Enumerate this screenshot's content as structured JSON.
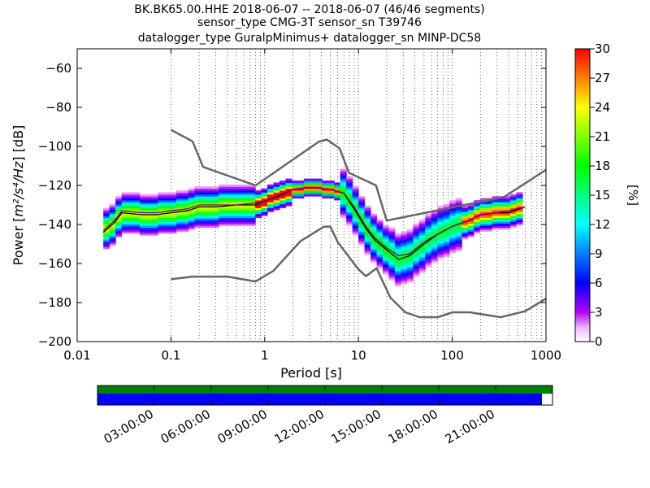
{
  "chart_data": {
    "type": "heatmap",
    "title_lines": [
      "BK.BK65.00.HHE   2018-06-07 -- 2018-06-07  (46/46 segments)",
      "sensor_type CMG-3T sensor_sn T39746",
      "datalogger_type GuralpMinimus+ datalogger_sn MINP-DC58"
    ],
    "xlabel": "Period [s]",
    "ylabel_prefix": "Power [",
    "ylabel_math": "m²/s⁴/Hz",
    "ylabel_suffix": "] [dB]",
    "x_scale": "log",
    "xlim": [
      0.01,
      1000
    ],
    "ylim": [
      -200,
      -50
    ],
    "x_ticks": [
      {
        "value": 0.01,
        "label": "0.01"
      },
      {
        "value": 0.1,
        "label": "0.1"
      },
      {
        "value": 1,
        "label": "1"
      },
      {
        "value": 10,
        "label": "10"
      },
      {
        "value": 100,
        "label": "100"
      },
      {
        "value": 1000,
        "label": "1000"
      }
    ],
    "y_ticks": [
      {
        "value": -200,
        "label": "−200"
      },
      {
        "value": -180,
        "label": "−180"
      },
      {
        "value": -160,
        "label": "−160"
      },
      {
        "value": -140,
        "label": "−140"
      },
      {
        "value": -120,
        "label": "−120"
      },
      {
        "value": -100,
        "label": "−100"
      },
      {
        "value": -80,
        "label": "−80"
      },
      {
        "value": -60,
        "label": "−60"
      }
    ],
    "grid": "dotted vertical at log minor ticks",
    "colorbar": {
      "label": "[%]",
      "range": [
        0,
        30
      ],
      "ticks": [
        "0",
        "3",
        "6",
        "9",
        "12",
        "15",
        "18",
        "21",
        "24",
        "27",
        "30"
      ],
      "colormap": "pqlx (white-purple-blue-cyan-green-yellow-red)"
    },
    "series": [
      {
        "role": "high noise model",
        "color": "#666666",
        "points": [
          [
            0.1,
            -91.5
          ],
          [
            0.17,
            -97.4
          ],
          [
            0.22,
            -110.5
          ],
          [
            0.8,
            -120
          ],
          [
            3.8,
            -97.5
          ],
          [
            4.6,
            -96.5
          ],
          [
            6.3,
            -101
          ],
          [
            7.9,
            -113.5
          ],
          [
            15.4,
            -120
          ],
          [
            20,
            -138
          ],
          [
            354,
            -126
          ],
          [
            1000,
            -112
          ]
        ]
      },
      {
        "role": "low noise model",
        "color": "#666666",
        "points": [
          [
            0.1,
            -168
          ],
          [
            0.17,
            -166.7
          ],
          [
            0.4,
            -166.7
          ],
          [
            0.8,
            -169.2
          ],
          [
            1.24,
            -163.7
          ],
          [
            2.4,
            -148.6
          ],
          [
            4.3,
            -141.1
          ],
          [
            5,
            -141.1
          ],
          [
            6,
            -149
          ],
          [
            10,
            -163
          ],
          [
            12,
            -166.5
          ],
          [
            15.6,
            -162.4
          ],
          [
            21.9,
            -177.5
          ],
          [
            31.6,
            -185
          ],
          [
            45,
            -187.5
          ],
          [
            70,
            -187.5
          ],
          [
            101,
            -185
          ],
          [
            154,
            -185
          ],
          [
            328,
            -187.5
          ],
          [
            600,
            -184.4
          ],
          [
            1000,
            -178
          ]
        ]
      },
      {
        "role": "mode",
        "color": "#000000",
        "points": [
          [
            0.019,
            -144
          ],
          [
            0.025,
            -139
          ],
          [
            0.03,
            -134
          ],
          [
            0.05,
            -135
          ],
          [
            0.07,
            -135
          ],
          [
            0.1,
            -134
          ],
          [
            0.15,
            -133
          ],
          [
            0.2,
            -131
          ],
          [
            0.3,
            -131
          ],
          [
            0.5,
            -130
          ],
          [
            0.8,
            -130
          ],
          [
            1,
            -128
          ],
          [
            1.5,
            -125
          ],
          [
            2,
            -122
          ],
          [
            3,
            -121
          ],
          [
            5,
            -122
          ],
          [
            7,
            -124
          ],
          [
            9,
            -132
          ],
          [
            12,
            -142
          ],
          [
            15,
            -148
          ],
          [
            20,
            -153
          ],
          [
            27,
            -158
          ],
          [
            35,
            -156
          ],
          [
            50,
            -150
          ],
          [
            70,
            -145
          ],
          [
            100,
            -141
          ],
          [
            150,
            -138
          ],
          [
            200,
            -135
          ],
          [
            300,
            -134
          ],
          [
            400,
            -134
          ],
          [
            600,
            -131
          ]
        ]
      },
      {
        "role": "mean",
        "color": "#800080",
        "points": [
          [
            0.019,
            -143
          ],
          [
            0.025,
            -138
          ],
          [
            0.03,
            -133
          ],
          [
            0.05,
            -134
          ],
          [
            0.07,
            -134
          ],
          [
            0.1,
            -133
          ],
          [
            0.15,
            -132
          ],
          [
            0.2,
            -130
          ],
          [
            0.3,
            -130
          ],
          [
            0.5,
            -130
          ],
          [
            0.8,
            -129
          ],
          [
            1,
            -128
          ],
          [
            1.5,
            -124.5
          ],
          [
            2,
            -122
          ],
          [
            3,
            -121
          ],
          [
            5,
            -122
          ],
          [
            7,
            -124
          ],
          [
            9,
            -131
          ],
          [
            12,
            -141
          ],
          [
            15,
            -147
          ],
          [
            20,
            -152
          ],
          [
            27,
            -156
          ],
          [
            35,
            -155
          ],
          [
            50,
            -149
          ],
          [
            70,
            -145
          ],
          [
            100,
            -141
          ],
          [
            150,
            -138
          ],
          [
            200,
            -135
          ],
          [
            300,
            -134
          ],
          [
            400,
            -133
          ],
          [
            600,
            -131
          ]
        ]
      }
    ]
  },
  "timeline": {
    "labels": [
      "03:00:00",
      "06:00:00",
      "09:00:00",
      "12:00:00",
      "15:00:00",
      "18:00:00",
      "21:00:00"
    ],
    "colors": {
      "data": "#008000",
      "psd": "#0000ff"
    }
  }
}
